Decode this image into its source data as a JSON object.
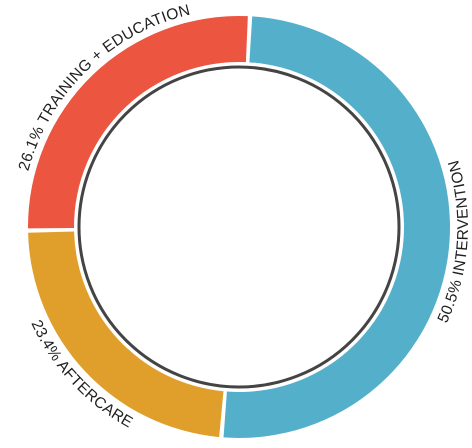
{
  "chart_data": {
    "type": "pie",
    "style": "donut",
    "title": "",
    "legend": "none",
    "start_angle_deg": 3,
    "direction": "clockwise",
    "segments": [
      {
        "label": "50.5% INTERVENTION",
        "value": 50.5,
        "color": "#54afcb"
      },
      {
        "label": "23.4% AFTERCARE",
        "value": 23.4,
        "color": "#e09f2b"
      },
      {
        "label": "26.1% TRAINING + EDUCATION",
        "value": 26.1,
        "color": "#ec5540"
      }
    ],
    "inner_circle_color": "#444444"
  }
}
